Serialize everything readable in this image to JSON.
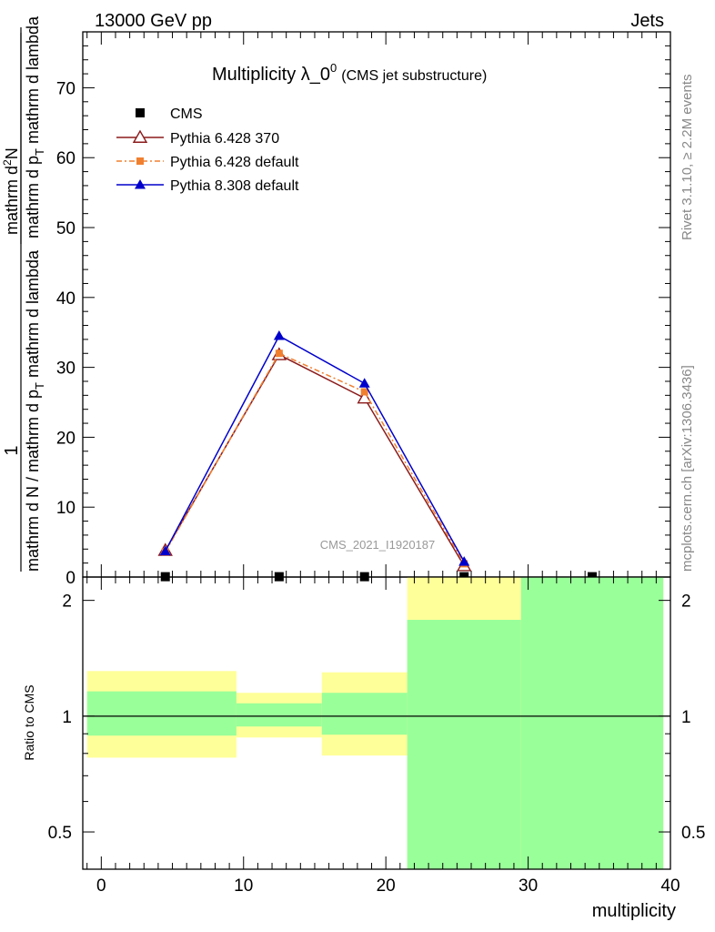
{
  "header": {
    "energy_label": "13000 GeV pp",
    "process_label": "Jets"
  },
  "side_labels": {
    "rivet": "Rivet 3.1.10, ≥ 2.2M events",
    "mcplots": "mcplots.cern.ch [arXiv:1306.3436]"
  },
  "chart_data": [
    {
      "type": "line",
      "title_main": "Multiplicity λ_0",
      "title_sup": "0",
      "title_sub": "(CMS jet substructure)",
      "analysis_id": "CMS_2021_I1920187",
      "xlabel": "multiplicity",
      "ylabel_numerator": "1",
      "ylabel_denominator": "mathrm d N / mathrm d p",
      "ylabel_denominator_sub": "T",
      "ylabel_denominator_tail": " mathrm d lambda",
      "ylabel_top_numerator": "mathrm d",
      "ylabel_top_sup": "2",
      "ylabel_top_N": "N",
      "ylabel_top_denominator": "mathrm d p",
      "ylabel_top_denominator_sub": "T",
      "ylabel_top_denominator_tail": " mathrm d lambda",
      "xlim": [
        -1.3,
        40
      ],
      "ylim": [
        0,
        78
      ],
      "yticks": [
        0,
        10,
        20,
        30,
        40,
        50,
        60,
        70
      ],
      "legend_position": "top-left",
      "series": [
        {
          "name": "CMS",
          "color": "#000000",
          "marker": "square",
          "x": [
            4.5,
            12.5,
            18.5,
            25.5,
            34.5
          ],
          "y": [
            0.05,
            0.05,
            0.05,
            0.05,
            0.05
          ]
        },
        {
          "name": "Pythia 6.428 370",
          "color": "#8b1a1a",
          "marker": "open-triangle",
          "line": "solid",
          "x": [
            4.5,
            12.5,
            18.5,
            25.5
          ],
          "y": [
            3.8,
            31.8,
            25.6,
            1.6
          ]
        },
        {
          "name": "Pythia 6.428 default",
          "color": "#f08030",
          "marker": "square-small",
          "line": "dashdot",
          "x": [
            4.5,
            12.5,
            18.5,
            25.5
          ],
          "y": [
            3.6,
            32.0,
            26.5,
            1.9
          ]
        },
        {
          "name": "Pythia 8.308 default",
          "color": "#0000cc",
          "marker": "triangle",
          "line": "solid",
          "x": [
            4.5,
            12.5,
            18.5,
            25.5
          ],
          "y": [
            3.7,
            34.5,
            27.7,
            2.2
          ]
        }
      ]
    },
    {
      "type": "area",
      "ylabel": "Ratio to CMS",
      "xlabel": "multiplicity",
      "ylim": [
        0.4,
        2.3
      ],
      "xlim": [
        -1.3,
        40
      ],
      "xticks": [
        0,
        10,
        20,
        30,
        40
      ],
      "yticks": [
        0.5,
        1,
        2
      ],
      "ytick_labels": [
        "0.5",
        "1",
        "2"
      ],
      "reference_line": 1,
      "bands": [
        {
          "x_low": -1,
          "x_high": 9.5,
          "yellow": [
            0.78,
            1.31
          ],
          "green": [
            0.89,
            1.16
          ]
        },
        {
          "x_low": 9.5,
          "x_high": 15.5,
          "yellow": [
            0.88,
            1.15
          ],
          "green": [
            0.94,
            1.08
          ]
        },
        {
          "x_low": 15.5,
          "x_high": 21.5,
          "yellow": [
            0.79,
            1.3
          ],
          "green": [
            0.895,
            1.15
          ]
        },
        {
          "x_low": 21.5,
          "x_high": 29.5,
          "yellow": [
            0.4,
            2.3
          ],
          "green": [
            0.4,
            1.78
          ]
        },
        {
          "x_low": 29.5,
          "x_high": 39.5,
          "yellow": [
            0.4,
            2.3
          ],
          "green": [
            0.4,
            2.3
          ]
        }
      ],
      "band_colors": {
        "yellow": "#ffff99",
        "green": "#99ff99"
      }
    }
  ]
}
